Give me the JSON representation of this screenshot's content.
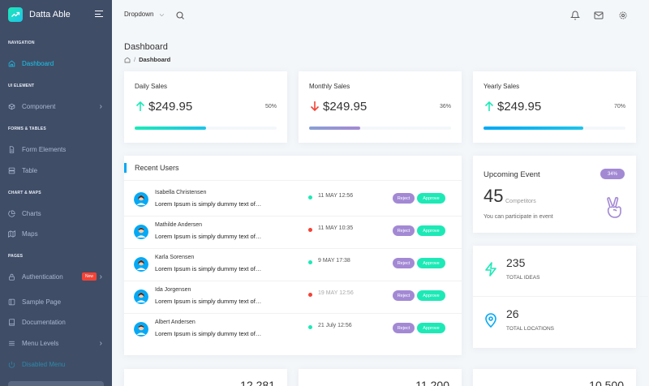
{
  "brand": {
    "name": "Datta Able"
  },
  "sidebar": {
    "captions": [
      "NAVIGATION",
      "UI ELEMENT",
      "FORMS & TABLES",
      "CHART & MAPS",
      "PAGES"
    ],
    "items": [
      {
        "label": "Dashboard",
        "icon": "home-icon"
      },
      {
        "label": "Component",
        "icon": "box-icon"
      },
      {
        "label": "Form Elements",
        "icon": "file-text-icon"
      },
      {
        "label": "Table",
        "icon": "server-icon"
      },
      {
        "label": "Charts",
        "icon": "pie-chart-icon"
      },
      {
        "label": "Maps",
        "icon": "map-icon"
      },
      {
        "label": "Authentication",
        "icon": "lock-icon",
        "badge": "New"
      },
      {
        "label": "Sample Page",
        "icon": "sidebar-icon"
      },
      {
        "label": "Documentation",
        "icon": "book-icon"
      },
      {
        "label": "Menu Levels",
        "icon": "menu-icon"
      },
      {
        "label": "Disabled Menu",
        "icon": "power-icon"
      }
    ]
  },
  "topbar": {
    "dropdown_label": "Dropdown"
  },
  "page": {
    "title": "Dashboard",
    "breadcrumb": "Dashboard"
  },
  "stats": [
    {
      "label": "Daily Sales",
      "value": "$249.95",
      "percent": "50%",
      "trend": "up",
      "progress": 0.5,
      "color": "#1de9b6"
    },
    {
      "label": "Monthly Sales",
      "value": "$249.95",
      "percent": "36%",
      "trend": "down",
      "progress": 0.36,
      "color": "#a389d4"
    },
    {
      "label": "Yearly Sales",
      "value": "$249.95",
      "percent": "70%",
      "trend": "up",
      "progress": 0.7,
      "color": "#04a9f5"
    }
  ],
  "recent_users": {
    "title": "Recent Users",
    "reject_label": "Reject",
    "approve_label": "Approve",
    "rows": [
      {
        "name": "Isabella Christensen",
        "text": "Lorem Ipsum is simply dummy text of…",
        "date": "11 MAY 12:56",
        "status": "green"
      },
      {
        "name": "Mathilde Andersen",
        "text": "Lorem Ipsum is simply dummy text of…",
        "date": "11 MAY 10:35",
        "status": "red"
      },
      {
        "name": "Karla Sorensen",
        "text": "Lorem Ipsum is simply dummy text of…",
        "date": "9 MAY 17:38",
        "status": "green"
      },
      {
        "name": "Ida Jorgensen",
        "text": "Lorem Ipsum is simply dummy text of…",
        "date": "19 MAY 12:56",
        "status": "red"
      },
      {
        "name": "Albert Andersen",
        "text": "Lorem Ipsum is simply dummy text of…",
        "date": "21 July 12:56",
        "status": "green"
      }
    ]
  },
  "upcoming_event": {
    "title": "Upcoming Event",
    "badge": "34%",
    "number": "45",
    "number_label": "Competitors",
    "subtitle": "You can participate in event"
  },
  "totals": [
    {
      "value": "235",
      "label": "TOTAL IDEAS"
    },
    {
      "value": "26",
      "label": "TOTAL LOCATIONS"
    }
  ],
  "bottom_cards": [
    {
      "value": "12,281"
    },
    {
      "value": "11,200"
    },
    {
      "value": "10,500"
    }
  ],
  "colors": {
    "accent": "#1dc4e9",
    "green": "#1de9b6",
    "purple": "#a389d4",
    "blue": "#04a9f5",
    "red": "#f44236",
    "sidebar": "#3f4d67"
  }
}
